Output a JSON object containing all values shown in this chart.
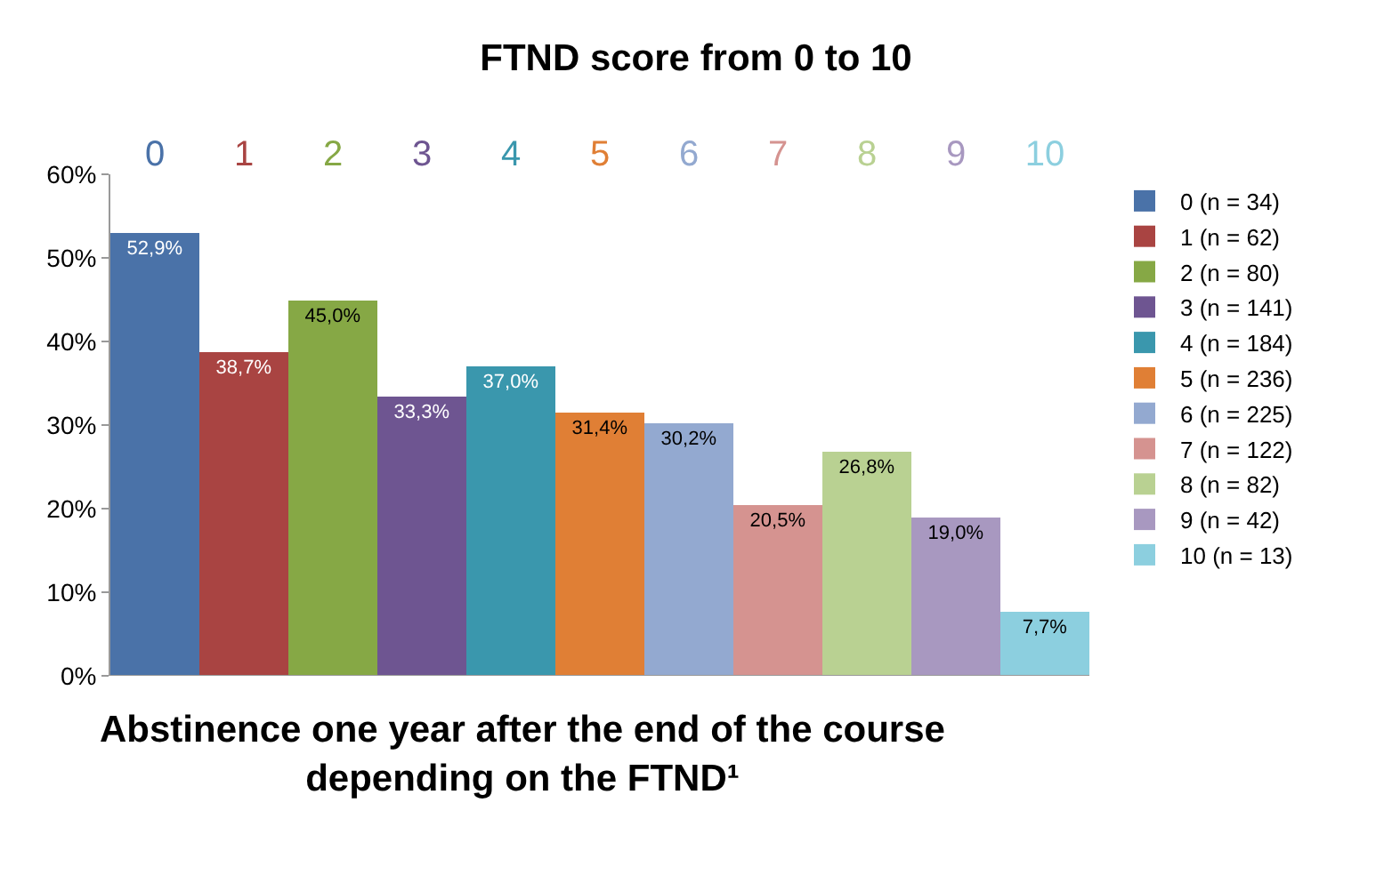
{
  "chart_data": {
    "type": "bar",
    "title": "FTND score from 0 to 10",
    "categories": [
      "0",
      "1",
      "2",
      "3",
      "4",
      "5",
      "6",
      "7",
      "8",
      "9",
      "10"
    ],
    "series": [
      {
        "name": "0 (n = 34)",
        "color": "#4a72a8",
        "values": [
          52.9,
          null,
          null,
          null,
          null,
          null,
          null,
          null,
          null,
          null,
          null
        ],
        "value_labels": [
          "52,9%",
          null,
          null,
          null,
          null,
          null,
          null,
          null,
          null,
          null,
          null
        ]
      },
      {
        "name": "1 (n = 62)",
        "color": "#a94442",
        "values": [
          null,
          38.7,
          null,
          null,
          null,
          null,
          null,
          null,
          null,
          null,
          null
        ],
        "value_labels": [
          null,
          "38,7%",
          null,
          null,
          null,
          null,
          null,
          null,
          null,
          null,
          null
        ]
      },
      {
        "name": "2 (n = 80)",
        "color": "#86a845",
        "values": [
          null,
          null,
          45.0,
          null,
          null,
          null,
          null,
          null,
          null,
          null,
          null
        ],
        "value_labels": [
          null,
          null,
          "45,0%",
          null,
          null,
          null,
          null,
          null,
          null,
          null,
          null
        ]
      },
      {
        "name": "3 (n = 141)",
        "color": "#6e5591",
        "values": [
          null,
          null,
          null,
          33.3,
          null,
          null,
          null,
          null,
          null,
          null,
          null
        ],
        "value_labels": [
          null,
          null,
          null,
          "33,3%",
          null,
          null,
          null,
          null,
          null,
          null,
          null
        ]
      },
      {
        "name": "4 (n = 184)",
        "color": "#3a97ad",
        "values": [
          null,
          null,
          null,
          null,
          37.0,
          null,
          null,
          null,
          null,
          null,
          null
        ],
        "value_labels": [
          null,
          null,
          null,
          null,
          "37,0%",
          null,
          null,
          null,
          null,
          null,
          null
        ]
      },
      {
        "name": "5 (n = 236)",
        "color": "#e07f35",
        "values": [
          null,
          null,
          null,
          null,
          null,
          31.4,
          null,
          null,
          null,
          null,
          null
        ],
        "value_labels": [
          null,
          null,
          null,
          null,
          null,
          "31,4%",
          null,
          null,
          null,
          null,
          null
        ]
      },
      {
        "name": "6 (n = 225)",
        "color": "#93a9d0",
        "values": [
          null,
          null,
          null,
          null,
          null,
          null,
          30.2,
          null,
          null,
          null,
          null
        ],
        "value_labels": [
          null,
          null,
          null,
          null,
          null,
          null,
          "30,2%",
          null,
          null,
          null,
          null
        ]
      },
      {
        "name": "7 (n = 122)",
        "color": "#d59390",
        "values": [
          null,
          null,
          null,
          null,
          null,
          null,
          null,
          20.5,
          null,
          null,
          null
        ],
        "value_labels": [
          null,
          null,
          null,
          null,
          null,
          null,
          null,
          "20,5%",
          null,
          null,
          null
        ]
      },
      {
        "name": "8 (n = 82)",
        "color": "#b9d192",
        "values": [
          null,
          null,
          null,
          null,
          null,
          null,
          null,
          null,
          26.8,
          null,
          null
        ],
        "value_labels": [
          null,
          null,
          null,
          null,
          null,
          null,
          null,
          null,
          "26,8%",
          null,
          null
        ]
      },
      {
        "name": "9 (n = 42)",
        "color": "#a898c0",
        "values": [
          null,
          null,
          null,
          null,
          null,
          null,
          null,
          null,
          null,
          19.0,
          null
        ],
        "value_labels": [
          null,
          null,
          null,
          null,
          null,
          null,
          null,
          null,
          null,
          "19,0%",
          null
        ]
      },
      {
        "name": "10 (n = 13)",
        "color": "#8ccfdf",
        "values": [
          null,
          null,
          null,
          null,
          null,
          null,
          null,
          null,
          null,
          null,
          7.7
        ],
        "value_labels": [
          null,
          null,
          null,
          null,
          null,
          null,
          null,
          null,
          null,
          null,
          "7,7%"
        ]
      }
    ],
    "ylim": [
      0,
      60
    ],
    "yticks": [
      {
        "value": 0,
        "label": "0%"
      },
      {
        "value": 10,
        "label": "10%"
      },
      {
        "value": 20,
        "label": "20%"
      },
      {
        "value": 30,
        "label": "30%"
      },
      {
        "value": 40,
        "label": "40%"
      },
      {
        "value": 50,
        "label": "50%"
      },
      {
        "value": 60,
        "label": "60%"
      }
    ],
    "grid": false,
    "legend": "right",
    "annotations": [
      "Abstinence one year after the end of the course depending on the FTND¹"
    ]
  }
}
